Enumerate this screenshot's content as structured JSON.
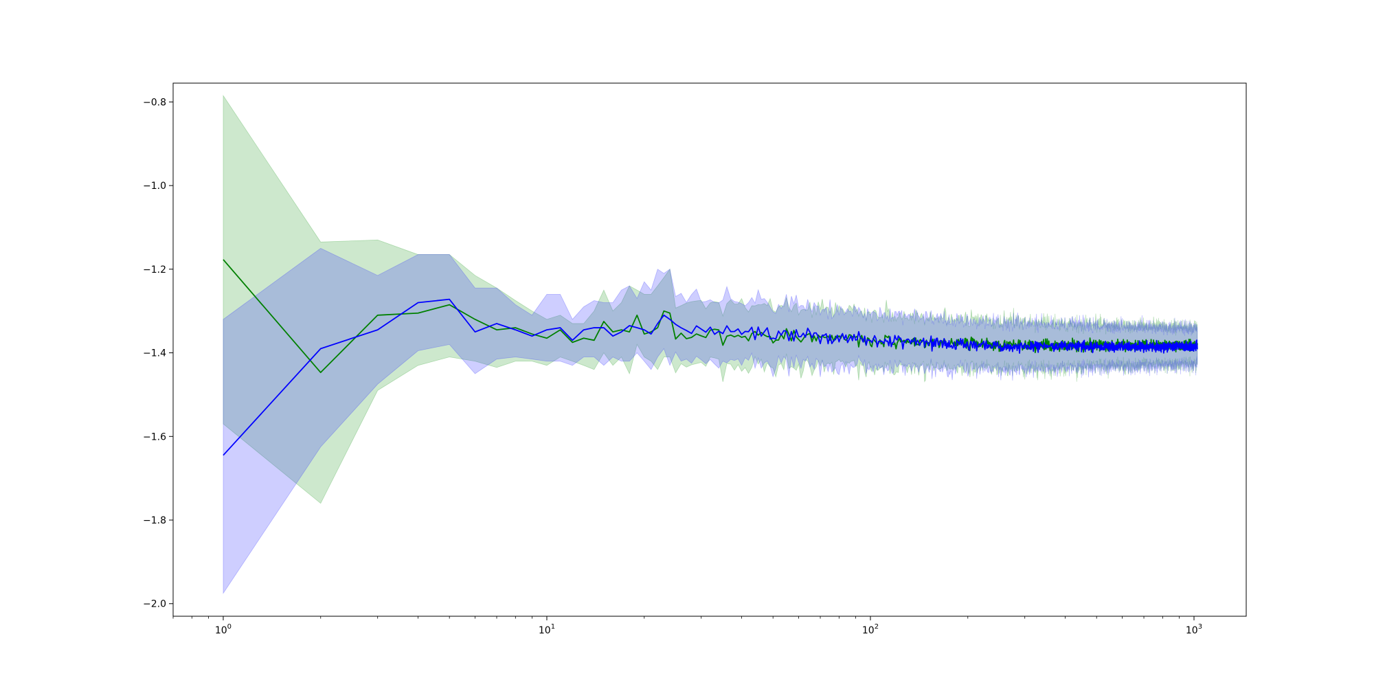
{
  "chart_data": {
    "type": "line",
    "title": "",
    "xlabel": "",
    "ylabel": "",
    "xscale": "log",
    "xlim": [
      0.7,
      1450
    ],
    "ylim": [
      -2.03,
      -0.755
    ],
    "grid": false,
    "legend": "none",
    "x_ticks": [
      {
        "value": 1,
        "base": "10",
        "exp": "0"
      },
      {
        "value": 10,
        "base": "10",
        "exp": "1"
      },
      {
        "value": 100,
        "base": "10",
        "exp": "2"
      },
      {
        "value": 1000,
        "base": "10",
        "exp": "3"
      }
    ],
    "y_ticks": [
      {
        "value": -0.8,
        "label": "−0.8"
      },
      {
        "value": -1.0,
        "label": "−1.0"
      },
      {
        "value": -1.2,
        "label": "−1.2"
      },
      {
        "value": -1.4,
        "label": "−1.4"
      },
      {
        "value": -1.6,
        "label": "−1.6"
      },
      {
        "value": -1.8,
        "label": "−1.8"
      },
      {
        "value": -2.0,
        "label": "−2.0"
      }
    ],
    "x_range": [
      1,
      1024
    ],
    "series": [
      {
        "color": "#008000",
        "band_color": "#2ca02c",
        "head_mean": [
          -1.177,
          -1.447,
          -1.31,
          -1.305,
          -1.285,
          -1.32,
          -1.345,
          -1.34,
          -1.355,
          -1.365,
          -1.345,
          -1.375,
          -1.365,
          -1.37,
          -1.325,
          -1.35,
          -1.345,
          -1.35,
          -1.31,
          -1.355,
          -1.35,
          -1.34,
          -1.3,
          -1.305
        ],
        "head_upper": [
          -0.785,
          -1.135,
          -1.13,
          -1.165,
          -1.165,
          -1.215,
          -1.245,
          -1.275,
          -1.3,
          -1.32,
          -1.31,
          -1.33,
          -1.33,
          -1.3,
          -1.25,
          -1.3,
          -1.28,
          -1.24,
          -1.25,
          -1.26,
          -1.26,
          -1.24,
          -1.22,
          -1.2
        ],
        "head_lower": [
          -1.57,
          -1.76,
          -1.49,
          -1.43,
          -1.41,
          -1.42,
          -1.435,
          -1.42,
          -1.42,
          -1.43,
          -1.41,
          -1.42,
          -1.43,
          -1.44,
          -1.4,
          -1.43,
          -1.41,
          -1.45,
          -1.38,
          -1.41,
          -1.42,
          -1.44,
          -1.41,
          -1.41
        ],
        "tail_mean_start": -1.35,
        "tail_mean_end": -1.382,
        "tail_half_width_start": 0.065,
        "tail_half_width_end": 0.035,
        "noise": 0.018,
        "band_noise": 0.03,
        "seed": 11
      },
      {
        "color": "#0000ff",
        "band_color": "#3333ff",
        "head_mean": [
          -1.645,
          -1.39,
          -1.345,
          -1.28,
          -1.272,
          -1.35,
          -1.33,
          -1.345,
          -1.36,
          -1.345,
          -1.34,
          -1.37,
          -1.345,
          -1.34,
          -1.34,
          -1.36,
          -1.35,
          -1.335,
          -1.34,
          -1.345,
          -1.355,
          -1.33,
          -1.31,
          -1.32
        ],
        "head_upper": [
          -1.32,
          -1.15,
          -1.215,
          -1.165,
          -1.165,
          -1.245,
          -1.245,
          -1.285,
          -1.31,
          -1.26,
          -1.26,
          -1.32,
          -1.29,
          -1.275,
          -1.28,
          -1.28,
          -1.25,
          -1.24,
          -1.27,
          -1.23,
          -1.25,
          -1.2,
          -1.21,
          -1.2
        ],
        "head_lower": [
          -1.975,
          -1.625,
          -1.475,
          -1.395,
          -1.38,
          -1.45,
          -1.415,
          -1.41,
          -1.415,
          -1.42,
          -1.42,
          -1.43,
          -1.41,
          -1.41,
          -1.43,
          -1.41,
          -1.42,
          -1.42,
          -1.4,
          -1.42,
          -1.44,
          -1.41,
          -1.39,
          -1.43
        ],
        "tail_mean_start": -1.34,
        "tail_mean_end": -1.385,
        "tail_half_width_start": 0.065,
        "tail_half_width_end": 0.035,
        "noise": 0.018,
        "band_noise": 0.03,
        "seed": 29
      }
    ]
  }
}
